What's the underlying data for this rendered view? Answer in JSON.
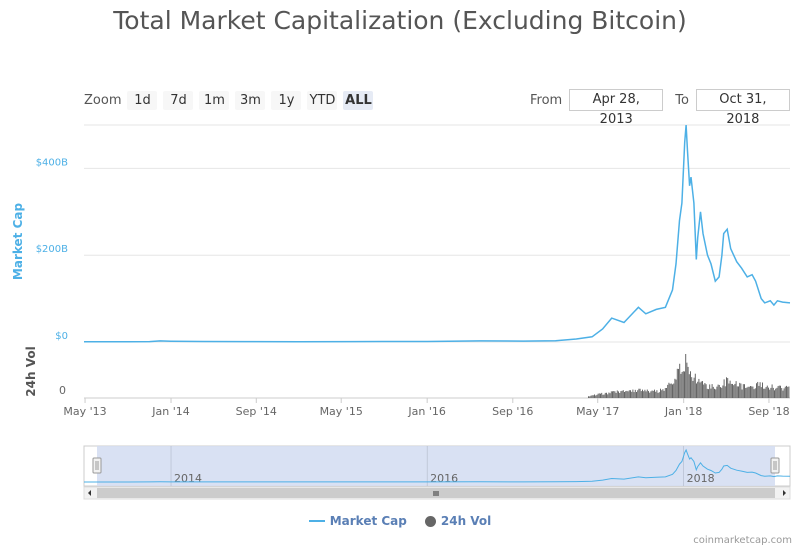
{
  "title": "Total Market Capitalization (Excluding Bitcoin)",
  "zoom": {
    "label": "Zoom",
    "buttons": [
      "1d",
      "7d",
      "1m",
      "3m",
      "1y",
      "YTD",
      "ALL"
    ],
    "active": "ALL"
  },
  "range": {
    "from_label": "From",
    "from_value": "Apr 28, 2013",
    "to_label": "To",
    "to_value": "Oct 31, 2018"
  },
  "credit": "coinmarketcap.com",
  "colors": {
    "market_cap": "#4db0e6",
    "volume": "#666666",
    "navigator_bg": "#d2dcf1",
    "scrollbar": "#e6e6e6"
  },
  "chart_data": {
    "type": "line",
    "x_range": [
      "2013-04-28",
      "2018-10-31"
    ],
    "x_tick_labels": [
      "May '13",
      "Jan '14",
      "Sep '14",
      "May '15",
      "Jan '16",
      "Sep '16",
      "May '17",
      "Jan '18",
      "Sep '18"
    ],
    "navigator_tick_labels": [
      "2014",
      "2016",
      "2018"
    ],
    "y_axis_market_cap": {
      "title": "Market Cap",
      "tick_labels": [
        "$0",
        "$200B",
        "$400B"
      ],
      "ylim": [
        0,
        500
      ]
    },
    "y_axis_volume": {
      "title": "24h Vol",
      "tick_labels": [
        "0"
      ]
    },
    "legend": [
      "Market Cap",
      "24h Vol"
    ],
    "legend_position": "bottom",
    "series": [
      {
        "name": "Market Cap",
        "unit": "billion USD",
        "points": [
          [
            "2013-04-28",
            0.4
          ],
          [
            "2013-08-01",
            0.4
          ],
          [
            "2013-11-01",
            0.9
          ],
          [
            "2013-12-01",
            2.5
          ],
          [
            "2014-01-01",
            1.8
          ],
          [
            "2014-04-01",
            1.2
          ],
          [
            "2014-08-01",
            0.9
          ],
          [
            "2015-01-01",
            0.8
          ],
          [
            "2015-06-01",
            0.9
          ],
          [
            "2016-01-01",
            1.2
          ],
          [
            "2016-06-01",
            2.5
          ],
          [
            "2016-10-01",
            2.0
          ],
          [
            "2017-01-01",
            3.0
          ],
          [
            "2017-03-01",
            7.0
          ],
          [
            "2017-04-15",
            12.0
          ],
          [
            "2017-05-15",
            30.0
          ],
          [
            "2017-06-10",
            55.0
          ],
          [
            "2017-07-15",
            45.0
          ],
          [
            "2017-08-25",
            80.0
          ],
          [
            "2017-09-15",
            65.0
          ],
          [
            "2017-10-15",
            75.0
          ],
          [
            "2017-11-10",
            80.0
          ],
          [
            "2017-11-30",
            120.0
          ],
          [
            "2017-12-10",
            180.0
          ],
          [
            "2017-12-20",
            280.0
          ],
          [
            "2017-12-27",
            320.0
          ],
          [
            "2018-01-04",
            460.0
          ],
          [
            "2018-01-08",
            500.0
          ],
          [
            "2018-01-12",
            440.0
          ],
          [
            "2018-01-18",
            360.0
          ],
          [
            "2018-01-22",
            380.0
          ],
          [
            "2018-01-30",
            320.0
          ],
          [
            "2018-02-06",
            190.0
          ],
          [
            "2018-02-10",
            240.0
          ],
          [
            "2018-02-18",
            300.0
          ],
          [
            "2018-02-25",
            250.0
          ],
          [
            "2018-03-10",
            200.0
          ],
          [
            "2018-03-20",
            180.0
          ],
          [
            "2018-04-01",
            140.0
          ],
          [
            "2018-04-12",
            150.0
          ],
          [
            "2018-04-20",
            200.0
          ],
          [
            "2018-04-25",
            250.0
          ],
          [
            "2018-05-05",
            260.0
          ],
          [
            "2018-05-15",
            215.0
          ],
          [
            "2018-06-01",
            185.0
          ],
          [
            "2018-06-15",
            170.0
          ],
          [
            "2018-07-01",
            150.0
          ],
          [
            "2018-07-15",
            155.0
          ],
          [
            "2018-07-25",
            140.0
          ],
          [
            "2018-08-10",
            100.0
          ],
          [
            "2018-08-20",
            90.0
          ],
          [
            "2018-09-05",
            95.0
          ],
          [
            "2018-09-15",
            85.0
          ],
          [
            "2018-09-25",
            95.0
          ],
          [
            "2018-10-10",
            92.0
          ],
          [
            "2018-10-31",
            90.0
          ]
        ]
      },
      {
        "name": "24h Vol",
        "type": "column",
        "points": [
          [
            "2017-04-01",
            0.05
          ],
          [
            "2017-05-15",
            0.12
          ],
          [
            "2017-07-01",
            0.18
          ],
          [
            "2017-09-01",
            0.2
          ],
          [
            "2017-10-15",
            0.18
          ],
          [
            "2017-11-15",
            0.3
          ],
          [
            "2017-12-15",
            0.7
          ],
          [
            "2017-12-30",
            0.85
          ],
          [
            "2018-01-06",
            1.0
          ],
          [
            "2018-01-15",
            0.75
          ],
          [
            "2018-02-01",
            0.6
          ],
          [
            "2018-02-15",
            0.45
          ],
          [
            "2018-03-01",
            0.35
          ],
          [
            "2018-04-01",
            0.3
          ],
          [
            "2018-05-01",
            0.45
          ],
          [
            "2018-06-01",
            0.35
          ],
          [
            "2018-07-01",
            0.3
          ],
          [
            "2018-08-01",
            0.35
          ],
          [
            "2018-09-01",
            0.3
          ],
          [
            "2018-10-31",
            0.25
          ]
        ]
      }
    ]
  }
}
